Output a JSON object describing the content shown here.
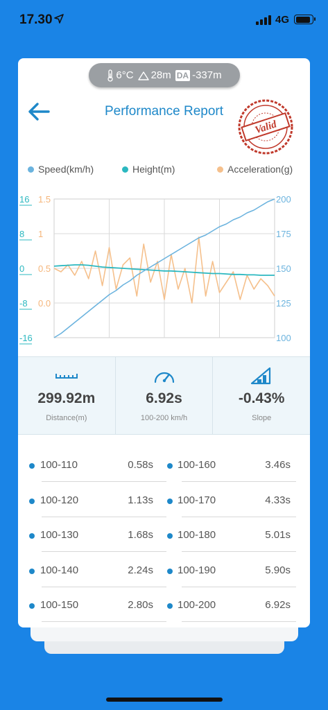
{
  "status_bar": {
    "time": "17.30",
    "network": "4G"
  },
  "weather": {
    "temperature": "6°C",
    "altitude": "28m",
    "da_label": "DA",
    "density_altitude": "-337m"
  },
  "header": {
    "title": "Performance Report",
    "stamp_text": "Valid"
  },
  "legend": [
    {
      "label": "Speed(km/h)",
      "color": "#6bb3de"
    },
    {
      "label": "Height(m)",
      "color": "#2bb8c0"
    },
    {
      "label": "Acceleration(g)",
      "color": "#f5c08c"
    }
  ],
  "chart_data": {
    "type": "line",
    "axes": {
      "height_ticks": [
        "16",
        "8",
        "0",
        "-8",
        "-16"
      ],
      "height_range": [
        -16,
        16
      ],
      "acceleration_ticks": [
        "1.5",
        "1",
        "0.5",
        "0.0"
      ],
      "acceleration_range": [
        -0.5,
        1.5
      ],
      "speed_ticks": [
        "200",
        "175",
        "150",
        "125",
        "100"
      ],
      "speed_range": [
        100,
        200
      ]
    },
    "grid": true,
    "series": [
      {
        "name": "Speed(km/h)",
        "color": "#6bb3de",
        "axis": "right",
        "values": [
          100,
          103,
          107,
          111,
          115,
          119,
          123,
          127,
          131,
          134,
          138,
          141,
          145,
          148,
          151,
          154,
          157,
          160,
          163,
          166,
          169,
          172,
          174,
          177,
          180,
          182,
          185,
          187,
          190,
          192,
          195,
          198,
          200
        ]
      },
      {
        "name": "Height(m)",
        "color": "#2bb8c0",
        "axis": "left",
        "values": [
          0.5,
          0.6,
          0.7,
          0.8,
          0.8,
          0.7,
          0.5,
          0.3,
          0.2,
          0.1,
          0.0,
          -0.1,
          -0.2,
          -0.3,
          -0.4,
          -0.5,
          -0.6,
          -0.6,
          -0.7,
          -0.8,
          -0.9,
          -1.0,
          -1.1,
          -1.2,
          -1.2,
          -1.3,
          -1.4,
          -1.4,
          -1.5,
          -1.5,
          -1.6,
          -1.6,
          -1.6
        ]
      },
      {
        "name": "Acceleration(g)",
        "color": "#f5c08c",
        "axis": "acceleration",
        "values": [
          0.5,
          0.45,
          0.55,
          0.4,
          0.6,
          0.35,
          0.75,
          0.25,
          0.8,
          0.2,
          0.55,
          0.65,
          0.1,
          0.85,
          0.3,
          0.6,
          0.05,
          0.7,
          0.2,
          0.5,
          0.0,
          0.95,
          0.1,
          0.6,
          0.15,
          0.3,
          0.45,
          0.05,
          0.4,
          0.2,
          0.35,
          0.25,
          0.1
        ]
      }
    ]
  },
  "stats": [
    {
      "icon": "ruler-icon",
      "value": "299.92m",
      "label": "Distance(m)"
    },
    {
      "icon": "speedometer-icon",
      "value": "6.92s",
      "label": "100-200 km/h"
    },
    {
      "icon": "slope-icon",
      "value": "-0.43%",
      "label": "Slope"
    }
  ],
  "splits": [
    {
      "left_range": "100-110",
      "left_time": "0.58s",
      "right_range": "100-160",
      "right_time": "3.46s"
    },
    {
      "left_range": "100-120",
      "left_time": "1.13s",
      "right_range": "100-170",
      "right_time": "4.33s"
    },
    {
      "left_range": "100-130",
      "left_time": "1.68s",
      "right_range": "100-180",
      "right_time": "5.01s"
    },
    {
      "left_range": "100-140",
      "left_time": "2.24s",
      "right_range": "100-190",
      "right_time": "5.90s"
    },
    {
      "left_range": "100-150",
      "left_time": "2.80s",
      "right_range": "100-200",
      "right_time": "6.92s"
    }
  ]
}
